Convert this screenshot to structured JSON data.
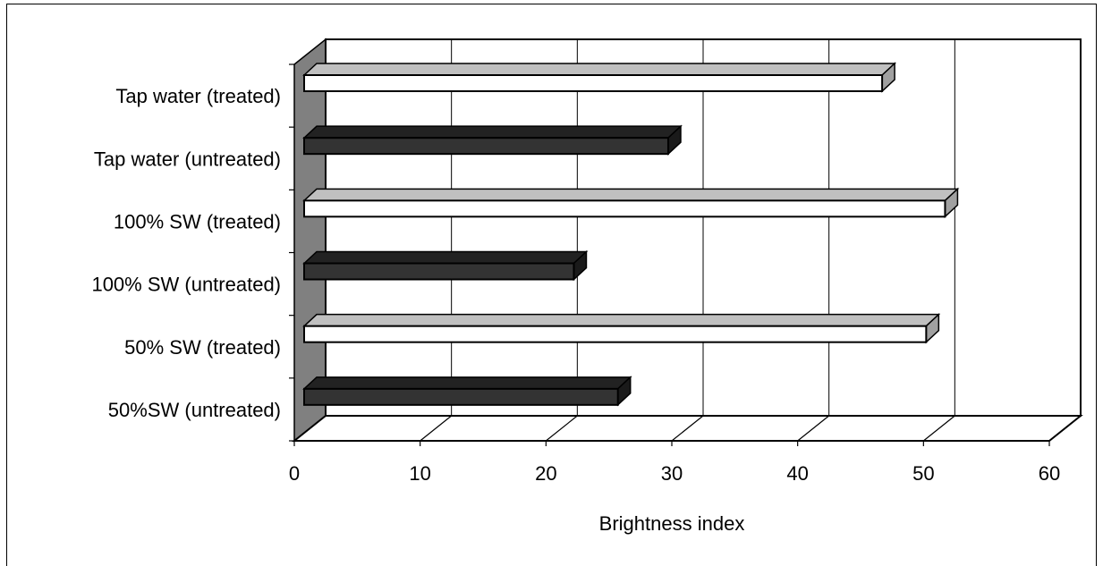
{
  "chart_data": {
    "type": "bar",
    "orientation": "horizontal",
    "style": "3d",
    "title": "",
    "xlabel": "Brightness index",
    "ylabel": "",
    "xlim": [
      0,
      60
    ],
    "xticks": [
      "0",
      "10",
      "20",
      "30",
      "40",
      "50",
      "60"
    ],
    "grid": true,
    "categories": [
      "Tap water (treated)",
      "Tap water (untreated)",
      "100% SW (treated)",
      "100% SW (untreated)",
      "50% SW (treated)",
      "50%SW (untreated)"
    ],
    "values": [
      46.5,
      29.5,
      51.5,
      22,
      50,
      25.5
    ],
    "bar_colors": [
      "#ffffff",
      "#333333",
      "#ffffff",
      "#333333",
      "#ffffff",
      "#333333"
    ]
  }
}
